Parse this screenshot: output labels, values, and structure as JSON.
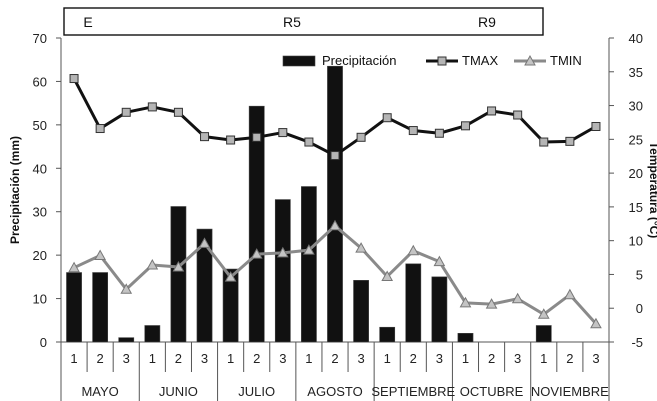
{
  "chart_data": {
    "type": "bar",
    "categories": [
      "1",
      "2",
      "3",
      "1",
      "2",
      "3",
      "1",
      "2",
      "3",
      "1",
      "2",
      "3",
      "1",
      "2",
      "3",
      "1",
      "2",
      "3",
      "1",
      "2",
      "3"
    ],
    "months": [
      "MAYO",
      "JUNIO",
      "JULIO",
      "AGOSTO",
      "SEPTIEMBRE",
      "OCTUBRE",
      "NOVIEMBRE"
    ],
    "stages": [
      "E",
      "R5",
      "R9"
    ],
    "ylabel": "Precipitación (mm)",
    "y2label": "Temperatura (°C)",
    "ylim": [
      0,
      70
    ],
    "y2lim": [
      -5,
      40
    ],
    "yticks": [
      "0",
      "10",
      "20",
      "30",
      "40",
      "50",
      "60",
      "70"
    ],
    "y2ticks": [
      "-5",
      "0",
      "5",
      "10",
      "15",
      "20",
      "25",
      "30",
      "35",
      "40"
    ],
    "legend_position": "top-right",
    "grid": false,
    "series": [
      {
        "name": "Precipitación",
        "type": "bar",
        "axis": "left",
        "color": "#111111",
        "values": [
          16,
          16,
          1,
          3.8,
          31.2,
          26,
          16.8,
          54.3,
          32.8,
          35.8,
          63.5,
          14.2,
          3.4,
          18,
          15,
          2,
          0,
          0,
          3.8,
          0,
          0
        ]
      },
      {
        "name": "TMAX",
        "type": "line",
        "axis": "right",
        "color": "#111111",
        "marker": "square",
        "values": [
          34,
          26.6,
          29,
          29.8,
          29,
          25.4,
          24.9,
          25.3,
          26,
          24.6,
          22.6,
          25.3,
          28.2,
          26.3,
          25.9,
          27,
          29.2,
          28.6,
          24.6,
          24.7,
          26.9
        ]
      },
      {
        "name": "TMIN",
        "type": "line",
        "axis": "right",
        "color": "#8a8a8a",
        "marker": "triangle",
        "values": [
          6,
          7.8,
          2.8,
          6.4,
          6.1,
          9.6,
          4.6,
          8,
          8.2,
          8.6,
          12.2,
          8.9,
          4.7,
          8.5,
          6.9,
          0.8,
          0.6,
          1.4,
          -0.9,
          2,
          -2.3
        ]
      }
    ]
  }
}
